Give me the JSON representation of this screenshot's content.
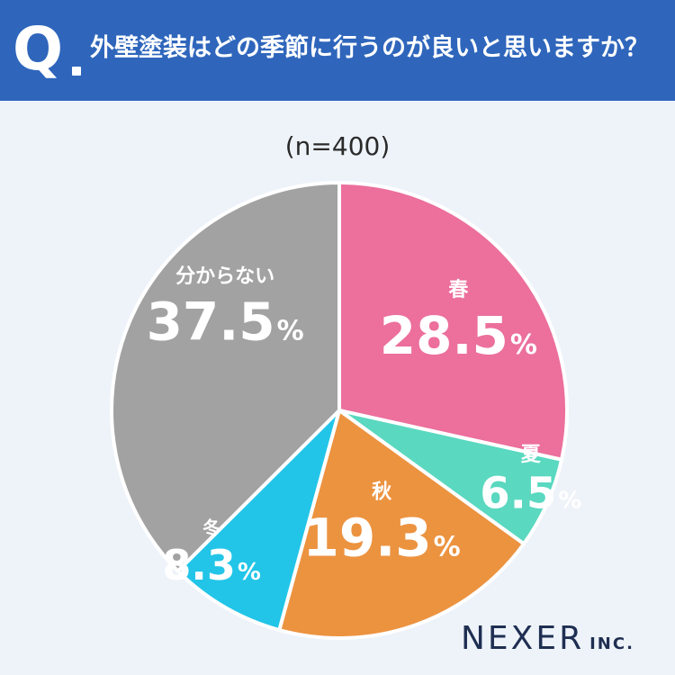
{
  "header": {
    "q_mark": "Q",
    "question": "外壁塗装はどの季節に行うのが良いと思いますか？"
  },
  "sample_label": "(n=400)",
  "logo": {
    "name": "NEXER",
    "suffix": "INC."
  },
  "colors": {
    "header_bg": "#2f66bc",
    "spring": "#ec6f9c",
    "summer": "#5ad8c0",
    "autumn": "#ec9340",
    "winter": "#22c5e8",
    "unknown": "#a2a2a2"
  },
  "chart_data": {
    "type": "pie",
    "title": "外壁塗装はどの季節に行うのが良いと思いますか？",
    "n": 400,
    "unit": "%",
    "slices": [
      {
        "label": "春",
        "value": 28.5,
        "color": "#ec6f9c"
      },
      {
        "label": "夏",
        "value": 6.5,
        "color": "#5ad8c0"
      },
      {
        "label": "秋",
        "value": 19.3,
        "color": "#ec9340"
      },
      {
        "label": "冬",
        "value": 8.3,
        "color": "#22c5e8"
      },
      {
        "label": "分からない",
        "value": 37.5,
        "color": "#a2a2a2"
      }
    ]
  }
}
